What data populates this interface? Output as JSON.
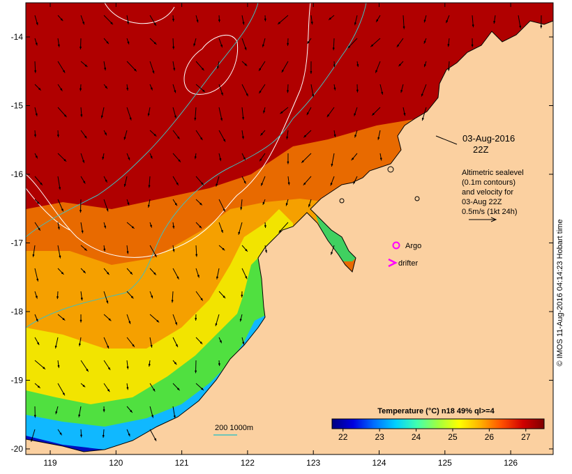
{
  "map": {
    "lat_ticks": [
      "-14",
      "-15",
      "-16",
      "-17",
      "-18",
      "-19",
      "-20"
    ],
    "lon_ticks": [
      "119",
      "120",
      "121",
      "122",
      "123",
      "124",
      "125",
      "126"
    ],
    "date_label": "03-Aug-2016",
    "time_label": "22Z",
    "altimetry_note": [
      "Altimetric sealevel",
      "(0.1m contours)",
      "and velocity for",
      "03-Aug 22Z",
      "0.5m/s (1kt 24h)"
    ],
    "argo_label": "Argo",
    "drifter_label": "drifter",
    "bathymetry_label": "200  1000m",
    "credit": "© IMOS 11-Aug-2016 04:14:23 Hobart time"
  },
  "colorbar": {
    "title": "Temperature (°C) n18 49% ql>=4",
    "ticks": [
      "22",
      "23",
      "24",
      "25",
      "26",
      "27"
    ],
    "range": [
      21.7,
      27.5
    ],
    "colors": [
      "#00007f",
      "#0000e0",
      "#0070ff",
      "#00d0ff",
      "#40ffb0",
      "#a0ff40",
      "#ffff00",
      "#ffb000",
      "#ff5000",
      "#d00000",
      "#800000"
    ]
  },
  "colors": {
    "land": "#fbd0a0",
    "sst_warm": "#b00000",
    "arrow": "#000000",
    "sealevel_contour": "#ffffff",
    "bathymetry_contour": "#40c0c0",
    "argo": "#ff00ff",
    "drifter": "#ff00ff"
  }
}
